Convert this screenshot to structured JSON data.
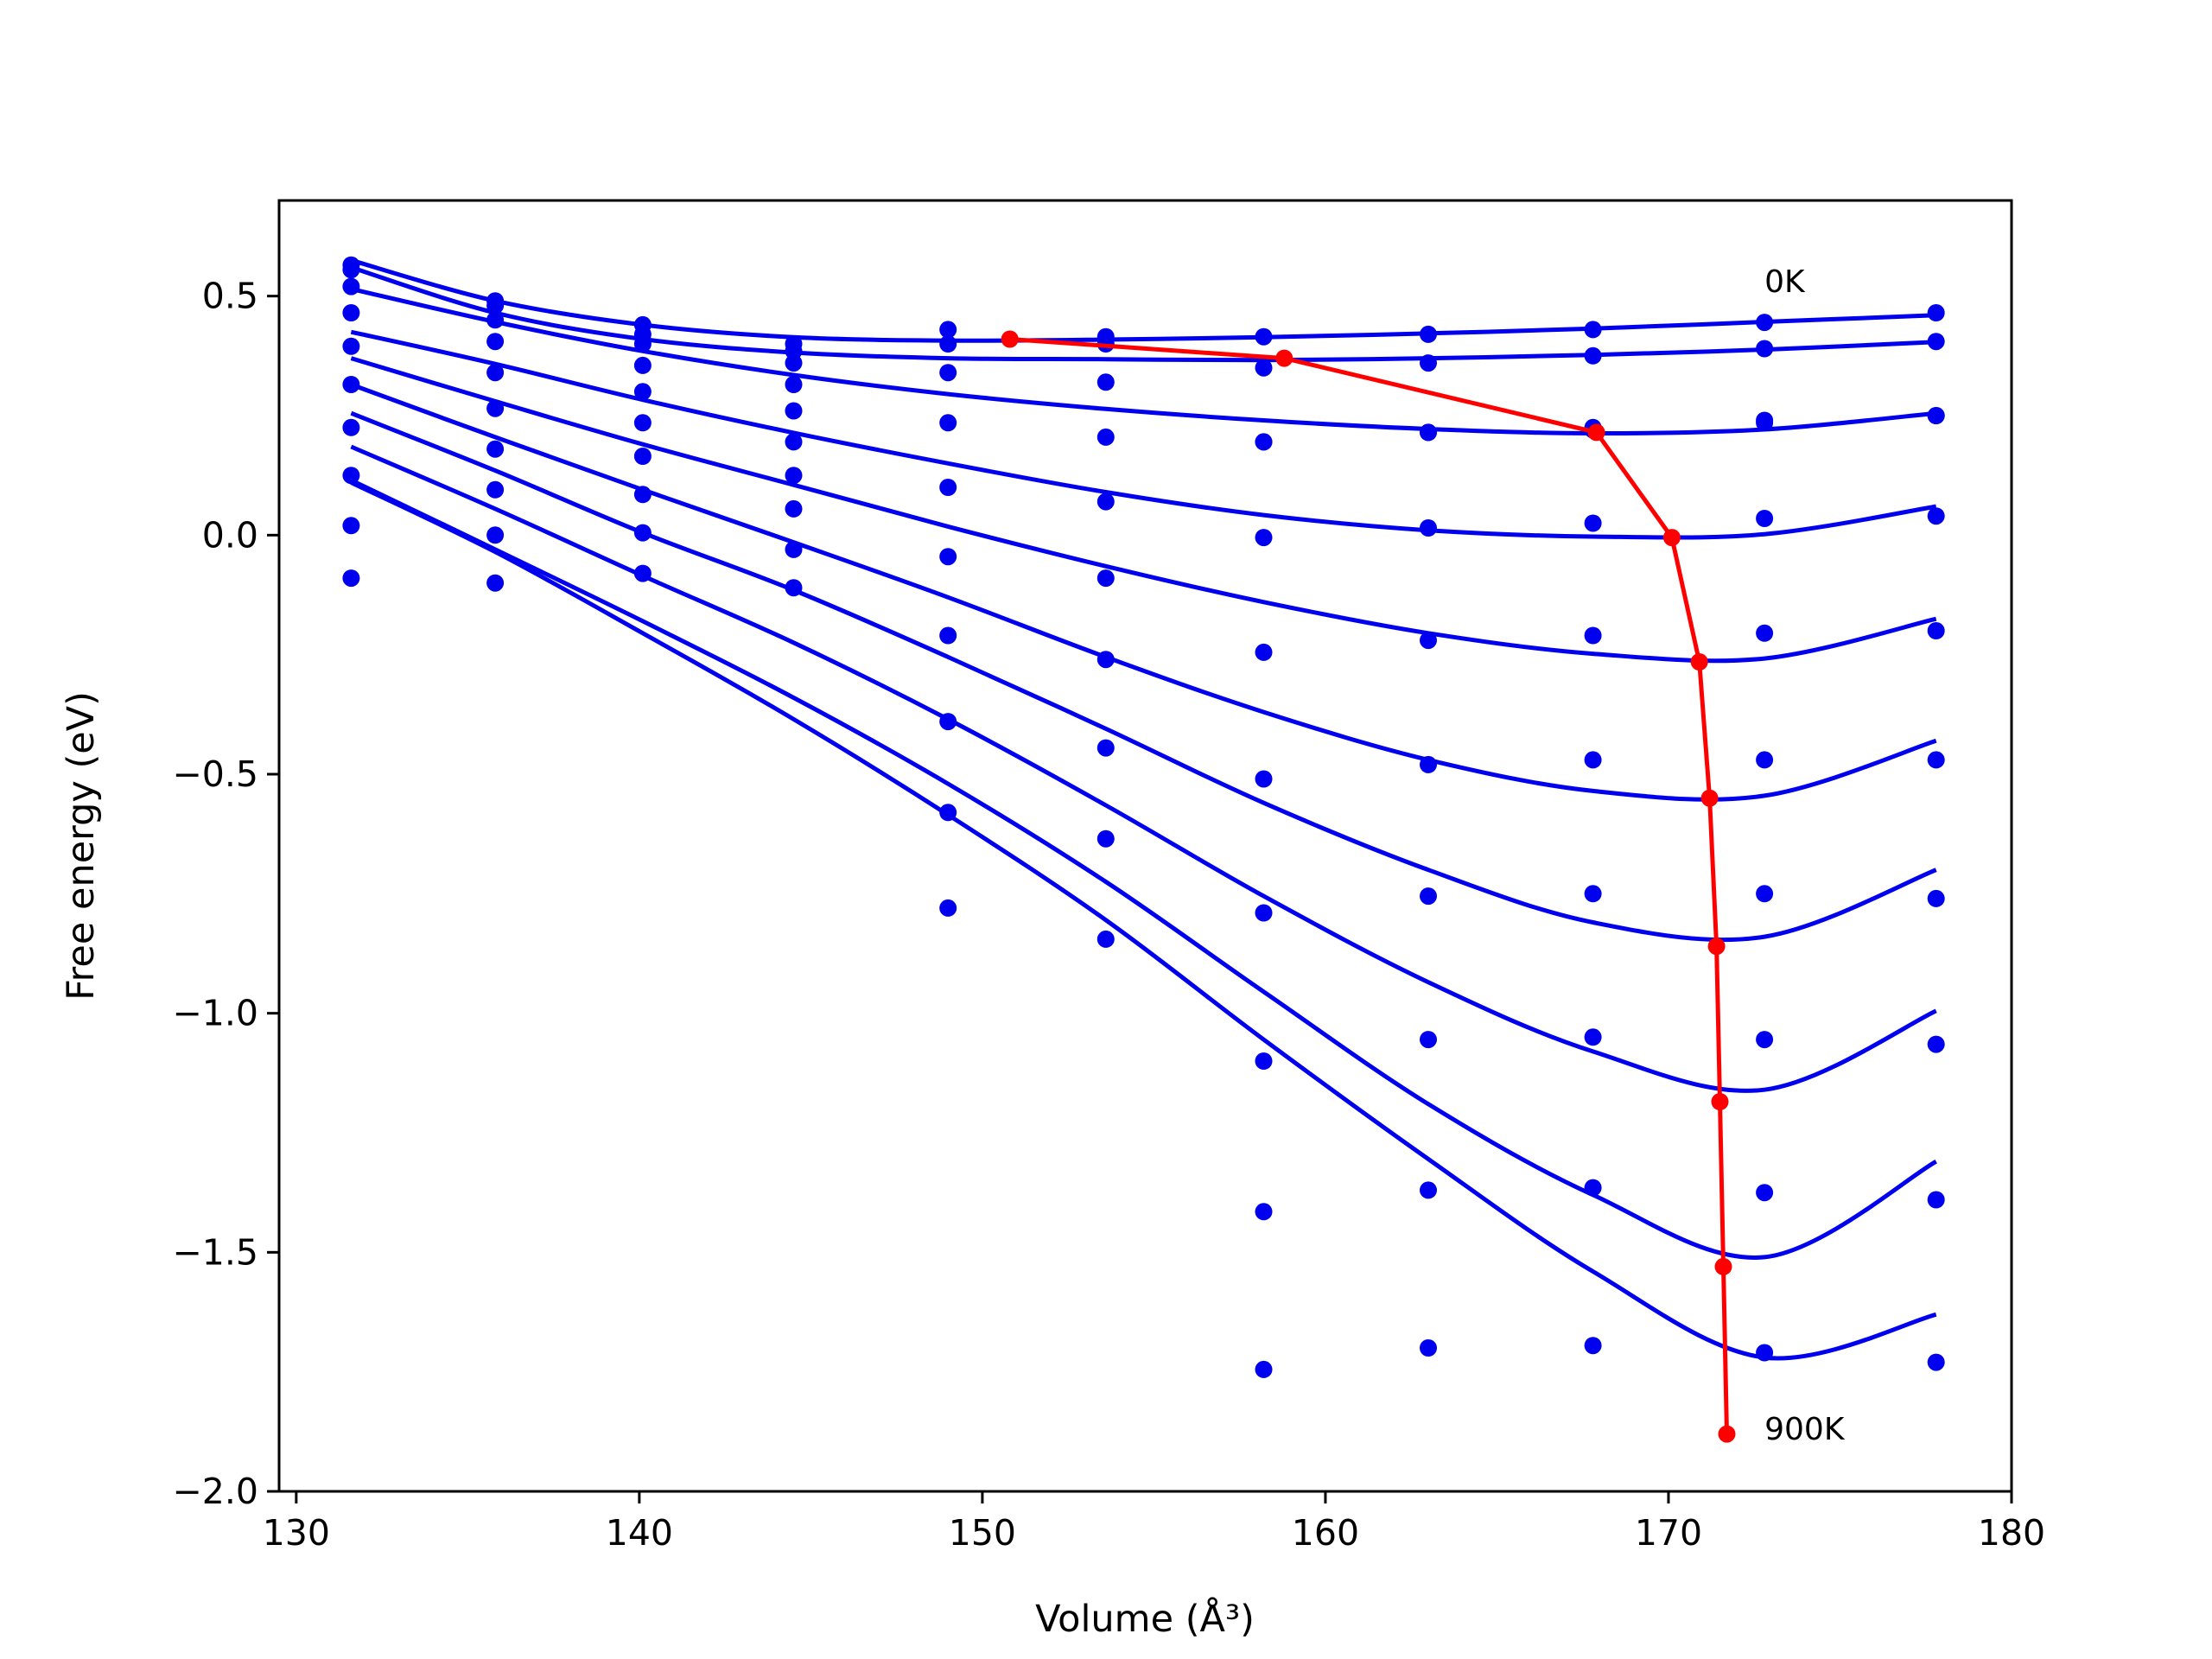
{
  "chart_data": {
    "type": "line",
    "title": "",
    "xlabel": "Volume (Å³)",
    "ylabel": "Free energy (eV)",
    "xlim": [
      129.5,
      180
    ],
    "ylim": [
      -2.0,
      0.7
    ],
    "xticks": [
      130,
      140,
      150,
      160,
      170,
      180
    ],
    "xtick_labels": [
      "130",
      "140",
      "150",
      "160",
      "170",
      "180"
    ],
    "yticks": [
      0.5,
      0.0,
      -0.5,
      -1.0,
      -1.5,
      -2.0
    ],
    "ytick_labels": [
      "0.5",
      "0.0",
      "−0.5",
      "−1.0",
      "−1.5",
      "−2.0"
    ],
    "grid": false,
    "legend": "none",
    "colors": {
      "fit": "#0000ee",
      "points": "#0000ee",
      "minima": "#ff0000",
      "frame": "#000000"
    },
    "annotations": [
      {
        "text": "0K",
        "x": 172.8,
        "y": 0.53
      },
      {
        "text": "900K",
        "x": 172.8,
        "y": -1.87
      }
    ],
    "volumes": [
      131.6,
      135.8,
      140.1,
      144.5,
      149.0,
      153.6,
      158.2,
      163.0,
      167.8,
      172.8,
      177.8
    ],
    "series": [
      {
        "points": [
          0.565,
          0.49,
          0.44,
          0.4,
          0.43,
          0.415,
          0.415,
          0.42,
          0.43,
          0.445,
          0.465
        ],
        "fit": [
          0.575,
          0.49,
          0.44,
          0.414,
          0.407,
          0.409,
          0.414,
          0.422,
          0.432,
          0.446,
          0.46
        ]
      },
      {
        "points": [
          0.555,
          0.48,
          0.42,
          0.385,
          0.4,
          0.4,
          0.35,
          0.36,
          0.375,
          0.39,
          0.405
        ],
        "fit": [
          0.56,
          0.465,
          0.41,
          0.382,
          0.37,
          0.368,
          0.366,
          0.37,
          0.377,
          0.388,
          0.404
        ]
      },
      {
        "points": [
          0.52,
          0.45,
          0.4,
          0.36,
          0.34,
          0.32,
          0.195,
          0.215,
          0.225,
          0.24,
          0.25
        ],
        "fit": [
          0.515,
          0.446,
          0.385,
          0.335,
          0.295,
          0.264,
          0.24,
          0.222,
          0.213,
          0.221,
          0.255
        ]
      },
      {
        "points": [
          0.465,
          0.405,
          0.355,
          0.315,
          0.235,
          0.205,
          0.195,
          0.215,
          0.22,
          0.235,
          0.25
        ],
        "fit": [
          0.425,
          0.358,
          0.283,
          0.214,
          0.15,
          0.09,
          0.042,
          0.01,
          -0.003,
          0.002,
          0.06
        ]
      },
      {
        "points": [
          0.395,
          0.34,
          0.3,
          0.26,
          0.1,
          0.07,
          -0.005,
          0.015,
          0.025,
          0.035,
          0.04
        ],
        "fit": [
          0.37,
          0.28,
          0.19,
          0.105,
          0.018,
          -0.065,
          -0.14,
          -0.205,
          -0.248,
          -0.258,
          -0.175
        ]
      },
      {
        "points": [
          0.315,
          0.265,
          0.235,
          0.195,
          -0.045,
          -0.09,
          -0.245,
          -0.22,
          -0.21,
          -0.205,
          -0.2
        ],
        "fit": [
          0.315,
          0.205,
          0.095,
          -0.015,
          -0.13,
          -0.255,
          -0.37,
          -0.47,
          -0.535,
          -0.545,
          -0.43
        ]
      },
      {
        "points": [
          0.225,
          0.18,
          0.165,
          0.125,
          -0.21,
          -0.26,
          -0.51,
          -0.48,
          -0.47,
          -0.47,
          -0.47
        ],
        "fit": [
          0.255,
          0.135,
          0.005,
          -0.115,
          -0.255,
          -0.405,
          -0.56,
          -0.7,
          -0.81,
          -0.84,
          -0.7
        ]
      },
      {
        "points": [
          0.125,
          0.095,
          0.085,
          0.055,
          -0.39,
          -0.445,
          -0.79,
          -0.755,
          -0.75,
          -0.75,
          -0.76
        ],
        "fit": [
          0.185,
          0.055,
          -0.085,
          -0.225,
          -0.385,
          -0.565,
          -0.755,
          -0.935,
          -1.08,
          -1.16,
          -0.995
        ]
      },
      {
        "points": [
          0.02,
          0.0,
          0.005,
          -0.03,
          -0.58,
          -0.635,
          -1.1,
          -1.055,
          -1.05,
          -1.055,
          -1.065
        ],
        "fit": [
          0.115,
          -0.03,
          -0.18,
          -0.34,
          -0.52,
          -0.725,
          -0.955,
          -1.19,
          -1.38,
          -1.51,
          -1.31
        ]
      },
      {
        "points": [
          -0.09,
          -0.1,
          -0.08,
          -0.11,
          -0.78,
          -0.845,
          -1.415,
          -1.37,
          -1.365,
          -1.375,
          -1.39
        ],
        "fit": [
          0.11,
          -0.035,
          -0.205,
          -0.385,
          -0.585,
          -0.805,
          -1.055,
          -1.305,
          -1.54,
          -1.72,
          -1.63
        ]
      },
      {
        "points": [
          null,
          null,
          null,
          null,
          null,
          null,
          -1.745,
          -1.7,
          -1.695,
          -1.71,
          -1.73
        ],
        "fit": null
      }
    ],
    "minima": {
      "x": [
        150.8,
        158.8,
        167.9,
        170.1,
        170.9,
        171.2,
        171.4,
        171.5,
        171.6,
        171.7
      ],
      "y": [
        0.41,
        0.37,
        0.215,
        -0.005,
        -0.265,
        -0.55,
        -0.86,
        -1.185,
        -1.53,
        -1.88
      ]
    }
  }
}
